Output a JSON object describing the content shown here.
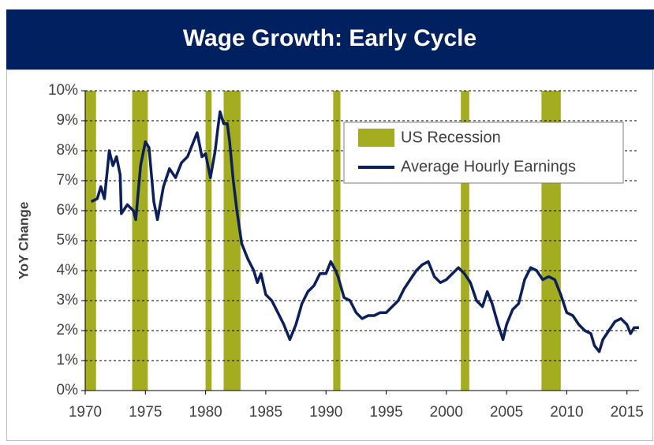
{
  "chart_data": {
    "type": "line",
    "title": "Wage Growth: Early Cycle",
    "y_label": "YoY Change",
    "xlim": [
      1970,
      2016
    ],
    "xticks": [
      1970,
      1975,
      1980,
      1985,
      1990,
      1995,
      2000,
      2005,
      2010,
      2015
    ],
    "ylim": [
      0,
      10
    ],
    "yticks": [
      {
        "value": 0,
        "label": "0%"
      },
      {
        "value": 1,
        "label": "1%"
      },
      {
        "value": 2,
        "label": "2%"
      },
      {
        "value": 3,
        "label": "3%"
      },
      {
        "value": 4,
        "label": "4%"
      },
      {
        "value": 5,
        "label": "5%"
      },
      {
        "value": 6,
        "label": "6%"
      },
      {
        "value": 7,
        "label": "7%"
      },
      {
        "value": 8,
        "label": "8%"
      },
      {
        "value": 9,
        "label": "9%"
      },
      {
        "value": 10,
        "label": "10%"
      }
    ],
    "grid": true,
    "legend": "upper right",
    "recessions": {
      "name": "US Recession",
      "color": "#a3ad1f",
      "ranges": [
        [
          1970,
          1970.9
        ],
        [
          1973.9,
          1975.2
        ],
        [
          1980.0,
          1980.5
        ],
        [
          1981.5,
          1982.9
        ],
        [
          1990.6,
          1991.2
        ],
        [
          2001.2,
          2001.9
        ],
        [
          2007.9,
          2009.5
        ]
      ]
    },
    "x": [
      1970.5,
      1971.0,
      1971.3,
      1971.6,
      1972.0,
      1972.3,
      1972.6,
      1972.9,
      1973.0,
      1973.5,
      1974.0,
      1974.2,
      1974.6,
      1975.0,
      1975.3,
      1975.7,
      1976.0,
      1976.5,
      1977.0,
      1977.5,
      1978.0,
      1978.5,
      1979.0,
      1979.3,
      1979.7,
      1980.0,
      1980.4,
      1980.8,
      1981.0,
      1981.2,
      1981.5,
      1981.8,
      1982.0,
      1982.3,
      1982.6,
      1983.0,
      1983.5,
      1984.0,
      1984.3,
      1984.6,
      1985.0,
      1985.5,
      1986.0,
      1986.5,
      1987.0,
      1987.5,
      1988.0,
      1988.5,
      1989.0,
      1989.5,
      1990.0,
      1990.4,
      1990.8,
      1991.0,
      1991.5,
      1992.0,
      1992.5,
      1993.0,
      1993.5,
      1994.0,
      1994.5,
      1995.0,
      1995.5,
      1996.0,
      1996.5,
      1997.0,
      1997.5,
      1998.0,
      1998.5,
      1999.0,
      1999.5,
      2000.0,
      2000.5,
      2001.0,
      2001.5,
      2002.0,
      2002.5,
      2003.0,
      2003.4,
      2003.8,
      2004.3,
      2004.7,
      2005.0,
      2005.5,
      2006.0,
      2006.5,
      2007.0,
      2007.5,
      2008.0,
      2008.5,
      2009.0,
      2009.5,
      2010.0,
      2010.5,
      2011.0,
      2011.5,
      2012.0,
      2012.3,
      2012.7,
      2013.0,
      2013.5,
      2014.0,
      2014.5,
      2015.0,
      2015.3,
      2015.6,
      2016.0
    ],
    "series": [
      {
        "name": "Average Hourly Earnings",
        "color": "#0b1f5c",
        "values": [
          6.3,
          6.4,
          6.8,
          6.4,
          8.0,
          7.5,
          7.8,
          7.2,
          5.9,
          6.2,
          6.0,
          5.7,
          7.5,
          8.3,
          8.1,
          6.3,
          5.7,
          6.8,
          7.4,
          7.1,
          7.6,
          7.8,
          8.3,
          8.6,
          7.8,
          7.9,
          7.1,
          8.0,
          8.7,
          9.3,
          8.9,
          8.9,
          8.3,
          7.0,
          6.0,
          4.9,
          4.4,
          4.0,
          3.6,
          3.9,
          3.2,
          3.0,
          2.6,
          2.2,
          1.7,
          2.2,
          2.9,
          3.3,
          3.5,
          3.9,
          3.9,
          4.3,
          4.0,
          3.8,
          3.1,
          3.0,
          2.6,
          2.4,
          2.5,
          2.5,
          2.6,
          2.6,
          2.8,
          3.0,
          3.4,
          3.7,
          4.0,
          4.2,
          4.3,
          3.8,
          3.6,
          3.7,
          3.9,
          4.1,
          3.9,
          3.6,
          3.0,
          2.8,
          3.3,
          2.9,
          2.2,
          1.7,
          2.2,
          2.7,
          2.9,
          3.7,
          4.1,
          4.0,
          3.7,
          3.8,
          3.7,
          3.2,
          2.6,
          2.5,
          2.2,
          2.0,
          1.9,
          1.5,
          1.3,
          1.7,
          2.0,
          2.3,
          2.4,
          2.2,
          1.9,
          2.1,
          2.1
        ]
      }
    ]
  }
}
